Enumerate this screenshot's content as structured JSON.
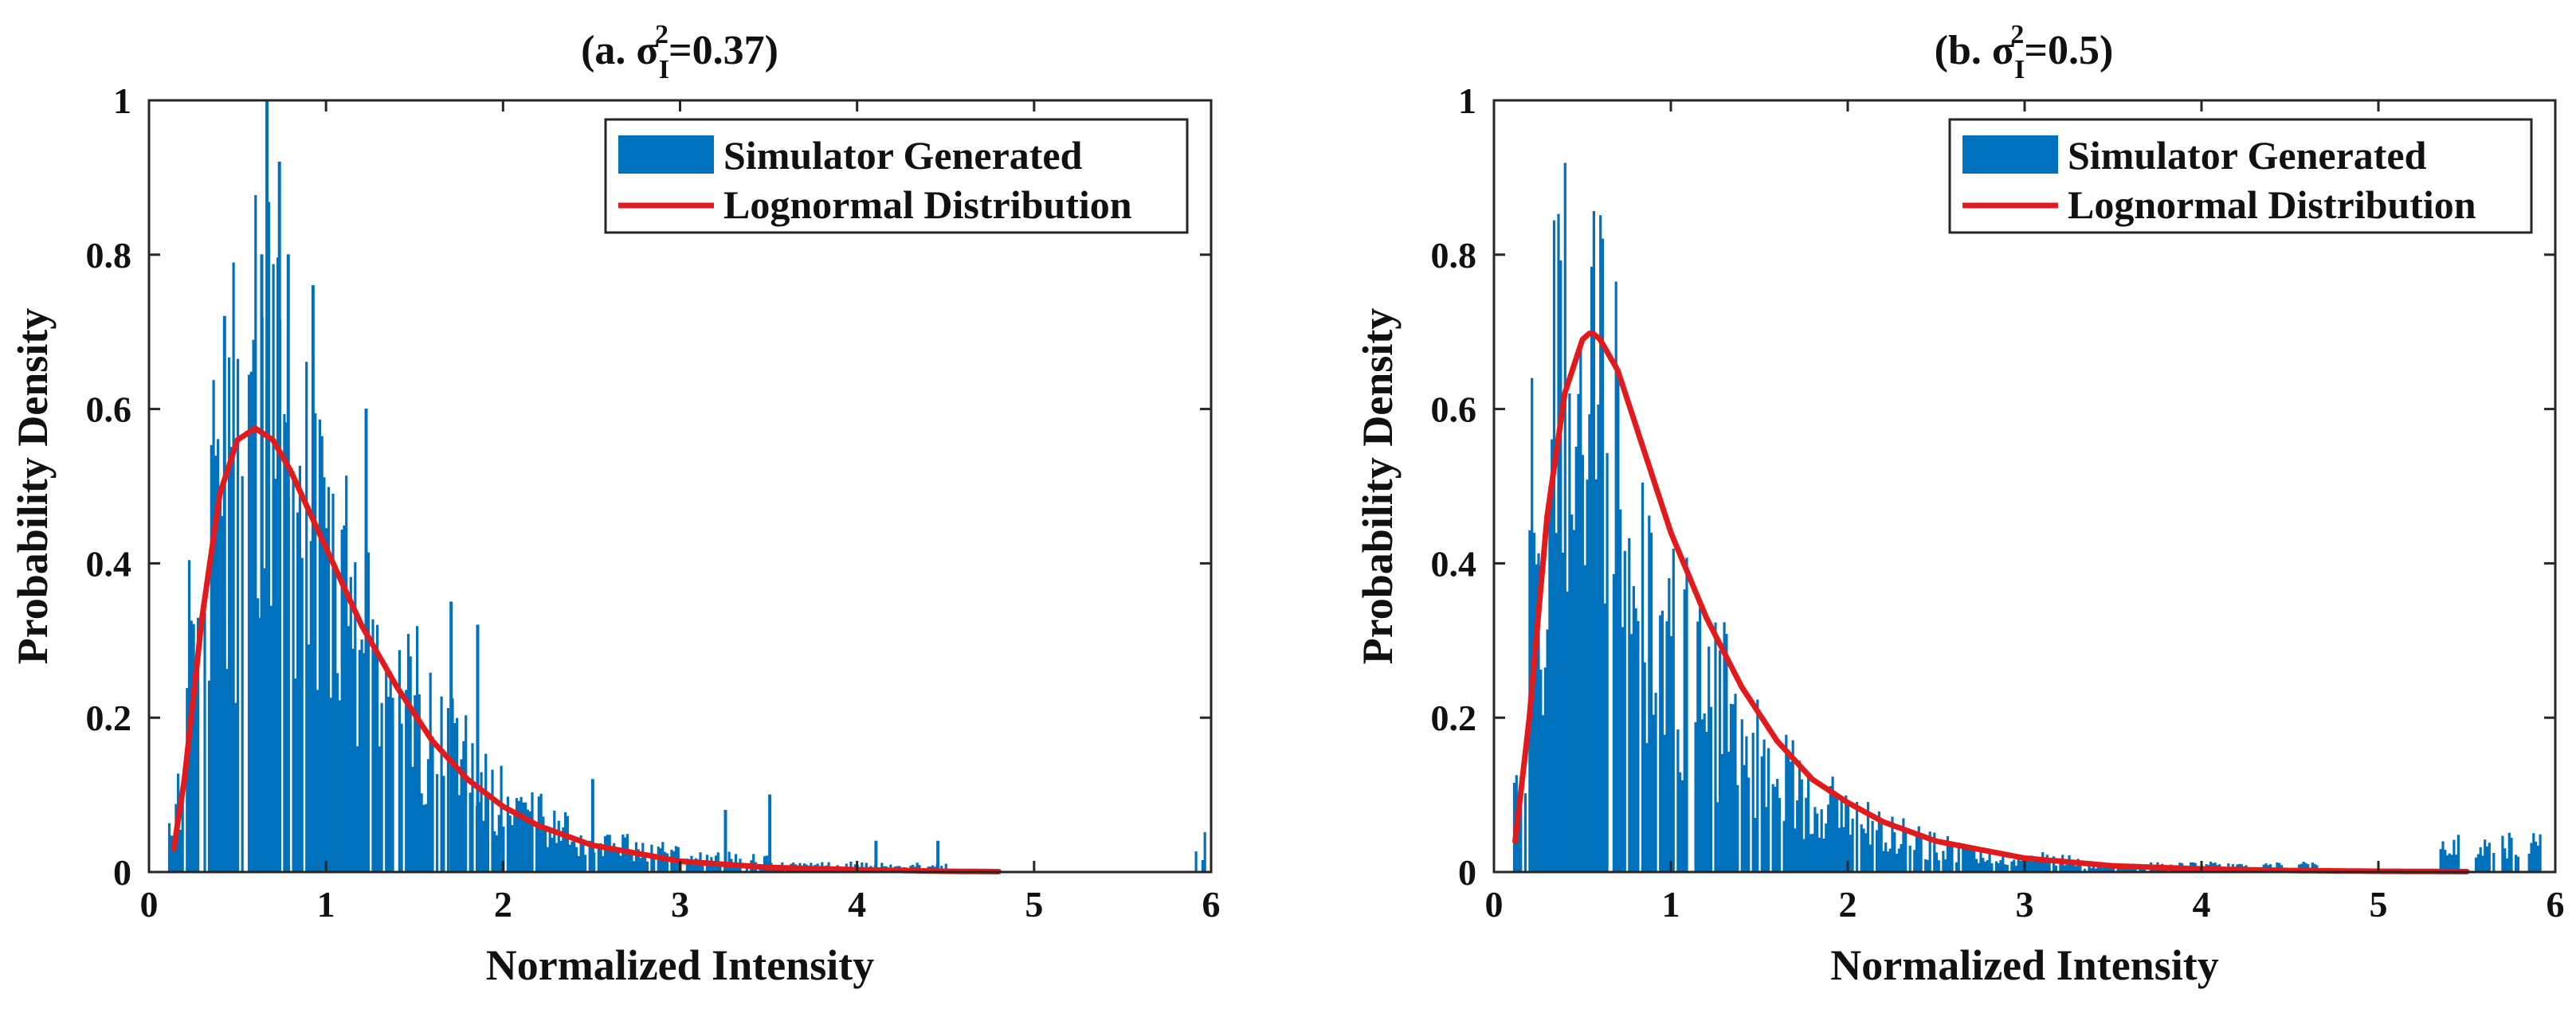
{
  "chart_data": [
    {
      "type": "bar",
      "subtype": "histogram with fitted curve",
      "title": "(a. σI2=0.37)",
      "title_parts": {
        "prefix": "(a. σ",
        "sub": "I",
        "sup": "2",
        "suffix": "=0.37)"
      },
      "xlabel": "Normalized Intensity",
      "ylabel": "Probability  Density",
      "xlim": [
        0,
        6
      ],
      "ylim": [
        0,
        1
      ],
      "xticks": [
        "0",
        "1",
        "2",
        "3",
        "4",
        "5",
        "6"
      ],
      "yticks": [
        "0",
        "0.2",
        "0.4",
        "0.6",
        "0.8",
        "1"
      ],
      "legend": {
        "position": "top-right",
        "entries": [
          "Simulator Generated",
          "Lognormal Distribution"
        ]
      },
      "colors": {
        "bars": "#0072BD",
        "curve": "#E31A1C"
      },
      "histogram": {
        "name": "Simulator Generated",
        "x": [
          0.15,
          0.25,
          0.35,
          0.45,
          0.55,
          0.65,
          0.75,
          0.85,
          0.95,
          1.05,
          1.15,
          1.25,
          1.35,
          1.45,
          1.55,
          1.65,
          1.75,
          1.85,
          1.95,
          2.05,
          2.15,
          2.25,
          2.35,
          2.45,
          2.55,
          2.65,
          2.75,
          2.85,
          2.95,
          3.05,
          3.15,
          3.25,
          3.35,
          3.45,
          3.55,
          3.65,
          3.75,
          3.85,
          3.95,
          4.05,
          4.15,
          4.25,
          4.35,
          4.45,
          5.95
        ],
        "values": [
          0.1,
          0.32,
          0.52,
          0.62,
          0.66,
          0.7,
          0.62,
          0.58,
          0.46,
          0.4,
          0.36,
          0.32,
          0.28,
          0.25,
          0.22,
          0.18,
          0.16,
          0.14,
          0.11,
          0.09,
          0.08,
          0.07,
          0.06,
          0.05,
          0.04,
          0.04,
          0.03,
          0.03,
          0.03,
          0.02,
          0.02,
          0.02,
          0.02,
          0.02,
          0.01,
          0.01,
          0.01,
          0.01,
          0.01,
          0.01,
          0.01,
          0.01,
          0.01,
          0.01,
          0.04
        ],
        "peaks": [
          [
            0.42,
            0.72
          ],
          [
            0.63,
            0.8
          ],
          [
            0.66,
            1.0
          ],
          [
            0.73,
            0.92
          ],
          [
            0.78,
            0.8
          ],
          [
            0.92,
            0.76
          ],
          [
            1.22,
            0.6
          ],
          [
            1.7,
            0.35
          ],
          [
            1.85,
            0.32
          ],
          [
            2.5,
            0.12
          ],
          [
            3.25,
            0.08
          ],
          [
            3.5,
            0.1
          ],
          [
            4.1,
            0.04
          ],
          [
            4.45,
            0.04
          ]
        ]
      },
      "curve": {
        "name": "Lognormal Distribution",
        "x": [
          0.14,
          0.2,
          0.3,
          0.4,
          0.5,
          0.6,
          0.7,
          0.8,
          0.9,
          1.0,
          1.2,
          1.4,
          1.6,
          1.8,
          2.0,
          2.2,
          2.5,
          3.0,
          3.5,
          4.0,
          4.5,
          4.8
        ],
        "y": [
          0.03,
          0.12,
          0.33,
          0.49,
          0.56,
          0.575,
          0.56,
          0.52,
          0.47,
          0.42,
          0.32,
          0.24,
          0.17,
          0.12,
          0.085,
          0.06,
          0.035,
          0.014,
          0.006,
          0.003,
          0.001,
          0.0005
        ]
      }
    },
    {
      "type": "bar",
      "subtype": "histogram with fitted curve",
      "title": "(b. σI2=0.5)",
      "title_parts": {
        "prefix": "(b. σ",
        "sub": "I",
        "sup": "2",
        "suffix": "=0.5)"
      },
      "xlabel": "Normalized Intensity",
      "ylabel": "Probability  Density",
      "xlim": [
        0,
        6
      ],
      "ylim": [
        0,
        1
      ],
      "xticks": [
        "0",
        "1",
        "2",
        "3",
        "4",
        "5",
        "6"
      ],
      "yticks": [
        "0",
        "0.2",
        "0.4",
        "0.6",
        "0.8",
        "1"
      ],
      "legend": {
        "position": "top-right",
        "entries": [
          "Simulator Generated",
          "Lognormal Distribution"
        ]
      },
      "colors": {
        "bars": "#0072BD",
        "curve": "#E31A1C"
      },
      "histogram": {
        "name": "Simulator Generated",
        "x": [
          0.15,
          0.25,
          0.35,
          0.45,
          0.55,
          0.65,
          0.75,
          0.85,
          0.95,
          1.05,
          1.15,
          1.25,
          1.35,
          1.45,
          1.55,
          1.65,
          1.75,
          1.85,
          1.95,
          2.05,
          2.15,
          2.25,
          2.35,
          2.45,
          2.55,
          2.65,
          2.75,
          2.85,
          2.95,
          3.05,
          3.15,
          3.25,
          3.35,
          3.45,
          3.55,
          3.65,
          3.75,
          3.85,
          3.95,
          4.05,
          4.2,
          4.4,
          4.6,
          5.4,
          5.6,
          5.75,
          5.9
        ],
        "values": [
          0.14,
          0.5,
          0.68,
          0.72,
          0.66,
          0.6,
          0.52,
          0.44,
          0.38,
          0.33,
          0.28,
          0.25,
          0.22,
          0.18,
          0.16,
          0.14,
          0.12,
          0.1,
          0.09,
          0.08,
          0.07,
          0.06,
          0.05,
          0.04,
          0.04,
          0.03,
          0.03,
          0.02,
          0.02,
          0.02,
          0.02,
          0.02,
          0.01,
          0.01,
          0.01,
          0.01,
          0.01,
          0.01,
          0.01,
          0.01,
          0.01,
          0.01,
          0.01,
          0.04,
          0.04,
          0.04,
          0.04
        ]
      },
      "curve": {
        "name": "Lognormal Distribution",
        "x": [
          0.12,
          0.2,
          0.3,
          0.4,
          0.5,
          0.55,
          0.6,
          0.7,
          0.8,
          0.9,
          1.0,
          1.2,
          1.4,
          1.6,
          1.8,
          2.0,
          2.2,
          2.5,
          3.0,
          3.5,
          4.0,
          4.5,
          5.0,
          5.5
        ],
        "y": [
          0.04,
          0.2,
          0.46,
          0.62,
          0.69,
          0.7,
          0.69,
          0.65,
          0.58,
          0.51,
          0.44,
          0.33,
          0.24,
          0.17,
          0.12,
          0.09,
          0.065,
          0.04,
          0.018,
          0.008,
          0.004,
          0.002,
          0.001,
          0.0005
        ]
      }
    }
  ]
}
